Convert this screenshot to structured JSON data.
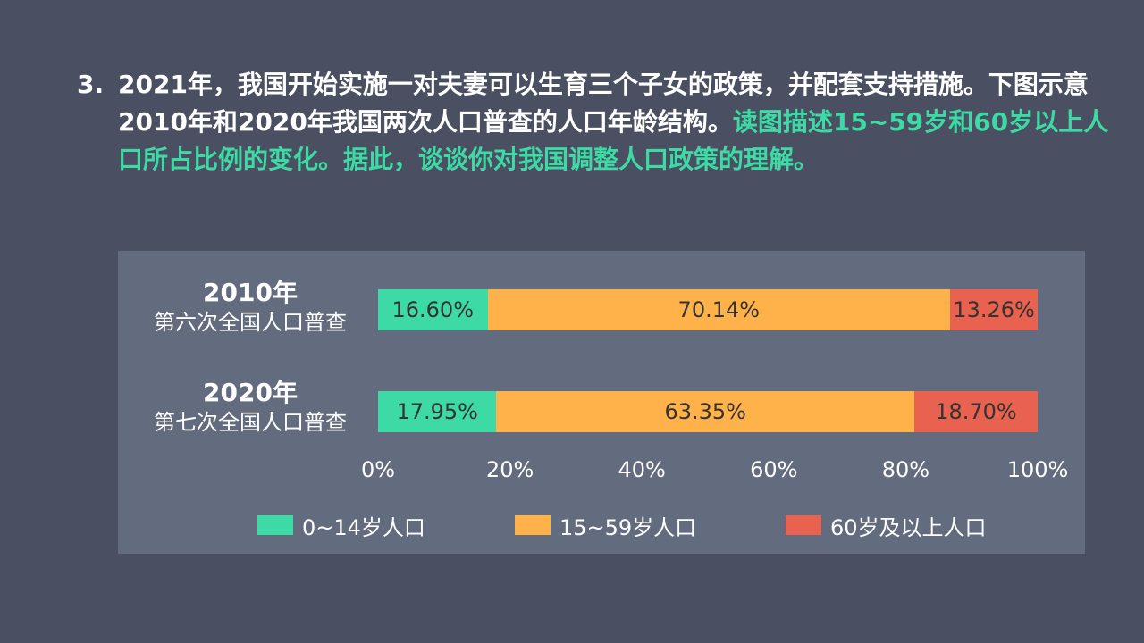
{
  "question": {
    "number": "3.",
    "text_plain": "2021年，我国开始实施一对夫妻可以生育三个子女的政策，并配套支持措施。下图示意2010年和2020年我国两次人口普查的人口年龄结构。",
    "text_highlight": "读图描述15~59岁和60岁以上人口所占比例的变化。据此，谈谈你对我国调整人口政策的理解。"
  },
  "colors": {
    "age_0_14": "#3ddaa5",
    "age_15_59": "#ffb24a",
    "age_60_plus": "#e8624f",
    "background": "#4a5061",
    "panel": "#636b7e",
    "highlight_text": "#3ddaa5"
  },
  "chart_data": {
    "type": "bar",
    "orientation": "horizontal",
    "stacked": true,
    "categories": [
      {
        "year": "2010年",
        "census": "第六次全国人口普查"
      },
      {
        "year": "2020年",
        "census": "第七次全国人口普查"
      }
    ],
    "series": [
      {
        "name": "0~14岁人口",
        "values": [
          16.6,
          17.95
        ],
        "labels": [
          "16.60%",
          "17.95%"
        ]
      },
      {
        "name": "15~59岁人口",
        "values": [
          70.14,
          63.35
        ],
        "labels": [
          "70.14%",
          "63.35%"
        ]
      },
      {
        "name": "60岁及以上人口",
        "values": [
          13.26,
          18.7
        ],
        "labels": [
          "13.26%",
          "18.70%"
        ]
      }
    ],
    "xlim": [
      0,
      100
    ],
    "xticks": [
      "0%",
      "20%",
      "40%",
      "60%",
      "80%",
      "100%"
    ],
    "legend_position": "bottom",
    "grid": false
  }
}
